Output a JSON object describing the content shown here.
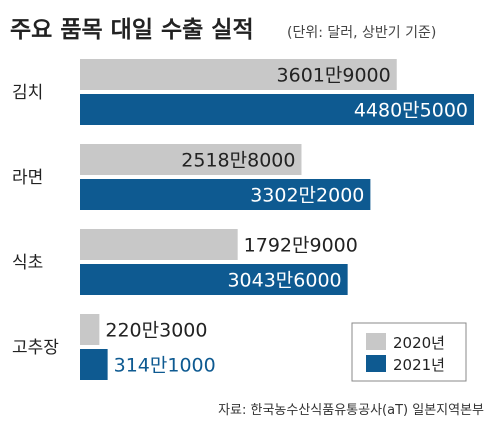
{
  "chart_data": {
    "type": "bar",
    "orientation": "horizontal",
    "title": "주요 품목 대일 수출 실적",
    "subtitle": "(단위: 달러, 상반기 기준)",
    "categories": [
      "김치",
      "라면",
      "식초",
      "고추장"
    ],
    "series": [
      {
        "name": "2020년",
        "color": "#c8c8c8",
        "values": [
          36019000,
          25188000,
          17929000,
          2203000
        ],
        "labels": [
          "3601만9000",
          "2518만8000",
          "1792만9000",
          "220만3000"
        ]
      },
      {
        "name": "2021년",
        "color": "#0e5a91",
        "values": [
          44805000,
          33022000,
          30436000,
          3141000
        ],
        "labels": [
          "4480만5000",
          "3302만2000",
          "3043만6000",
          "314만1000"
        ]
      }
    ],
    "xlim": [
      0,
      44805000
    ],
    "legend_position": "bottom-right",
    "grid": false,
    "source": "자료: 한국농수산식품유통공사(aT) 일본지역본부"
  }
}
